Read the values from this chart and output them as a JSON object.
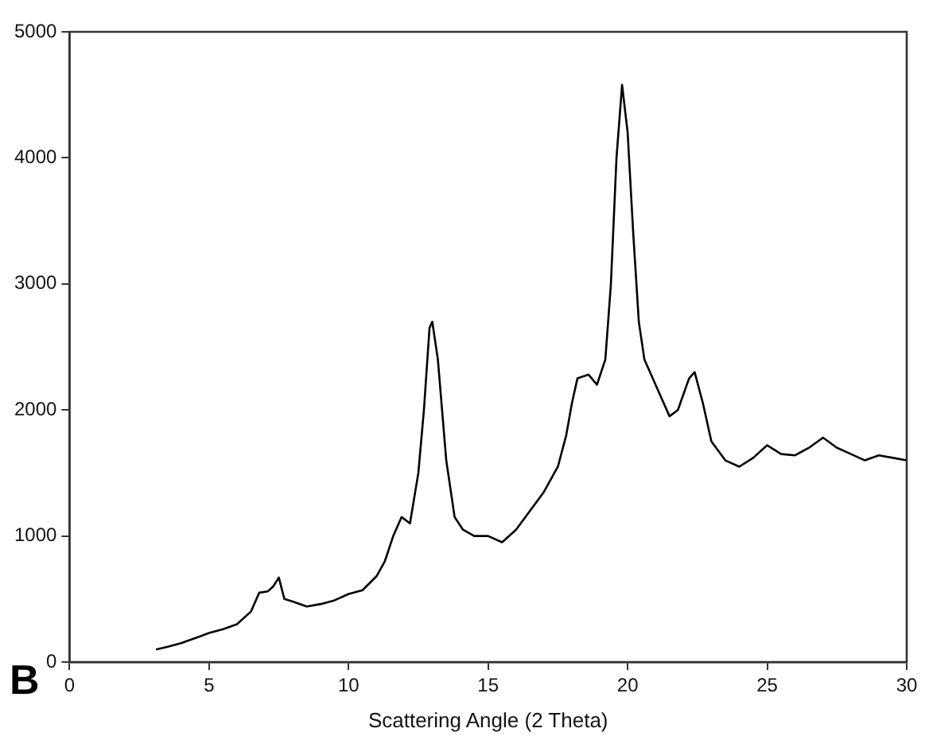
{
  "chart_data": {
    "type": "line",
    "xlabel": "Scattering Angle (2 Theta)",
    "annotations": [
      "B"
    ],
    "xlim": [
      0,
      30
    ],
    "xticks": [
      0,
      5,
      10,
      15,
      20,
      25,
      30
    ],
    "ylim": [
      0,
      5000
    ],
    "yticks": [
      0,
      1000,
      2000,
      3000,
      4000,
      5000
    ],
    "grid": false,
    "legend": false,
    "marker": "none",
    "line_style": "solid",
    "series": [
      {
        "color": "#000000",
        "x": [
          3.1,
          3.5,
          4,
          4.5,
          5,
          5.5,
          6,
          6.5,
          6.8,
          7.1,
          7.3,
          7.5,
          7.7,
          8,
          8.5,
          9,
          9.5,
          10,
          10.5,
          11,
          11.3,
          11.6,
          11.9,
          12.2,
          12.5,
          12.7,
          12.9,
          13.0,
          13.2,
          13.5,
          13.8,
          14.1,
          14.5,
          15,
          15.5,
          16,
          16.5,
          17,
          17.5,
          17.8,
          18,
          18.2,
          18.6,
          18.9,
          19.2,
          19.4,
          19.6,
          19.8,
          20,
          20.2,
          20.4,
          20.6,
          21,
          21.5,
          21.8,
          22.2,
          22.4,
          22.7,
          23,
          23.5,
          24,
          24.5,
          25,
          25.5,
          26,
          26.5,
          27,
          27.5,
          28,
          28.5,
          29,
          29.5,
          30
        ],
        "values": [
          100,
          120,
          150,
          190,
          230,
          260,
          300,
          400,
          550,
          560,
          600,
          670,
          500,
          480,
          440,
          460,
          490,
          540,
          570,
          680,
          800,
          1000,
          1150,
          1100,
          1500,
          2000,
          2650,
          2700,
          2400,
          1600,
          1150,
          1050,
          1000,
          1000,
          950,
          1050,
          1200,
          1350,
          1550,
          1800,
          2050,
          2250,
          2280,
          2200,
          2400,
          3000,
          4000,
          4580,
          4200,
          3400,
          2700,
          2400,
          2200,
          1950,
          2000,
          2250,
          2300,
          2050,
          1750,
          1600,
          1550,
          1620,
          1720,
          1650,
          1640,
          1700,
          1780,
          1700,
          1650,
          1600,
          1640,
          1620,
          1600
        ]
      }
    ]
  }
}
